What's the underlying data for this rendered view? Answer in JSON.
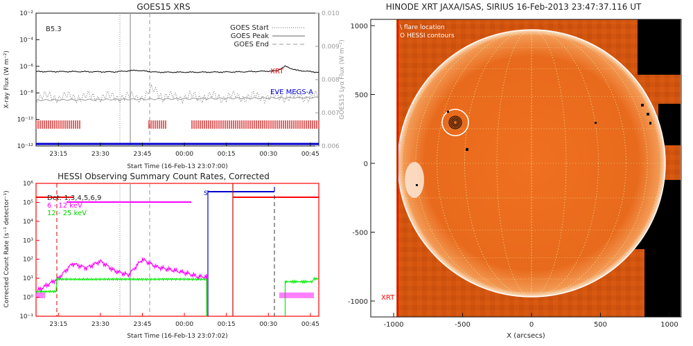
{
  "goes": {
    "title": "GOES15 XRS",
    "class_label": "B5.3",
    "ylabel_left": "X-ray Flux (W m⁻²)",
    "ylabel_right": "GOES15 Lyα Flux (W m⁻²)",
    "xlabel": "Start Time (16-Feb-13 23:07:00)",
    "time_ticks": [
      "23:15",
      "23:30",
      "23:45",
      "00:00",
      "00:15",
      "00:30",
      "00:45"
    ],
    "left_ticks": [
      "10⁻²",
      "10⁻⁴",
      "10⁻⁶",
      "10⁻⁸",
      "10⁻¹⁰",
      "10⁻¹²"
    ],
    "right_ticks": [
      "0.010",
      "0.009",
      "0.008",
      "0.007",
      "0.006"
    ],
    "legend": [
      "GOES Start",
      "GOES Peak",
      "GOES End"
    ],
    "xrt_label": "XRT",
    "eve_label": "EVE MEGS-A",
    "colors": {
      "xrt": "#cc0000",
      "eve": "#0000cc",
      "grey": "#999999"
    }
  },
  "hessi": {
    "title": "HESSI Observing Summary Count Rates, Corrected",
    "ylabel": "Corrected Count Rate (s⁻¹ detector⁻¹)",
    "xlabel": "Start Time (16-Feb-13 23:07:02)",
    "time_ticks": [
      "23:15",
      "23:30",
      "23:45",
      "00:00",
      "00:15",
      "00:30",
      "00:45"
    ],
    "y_ticks": [
      "10⁶",
      "10⁵",
      "10⁴",
      "10³",
      "10²",
      "10¹",
      "10⁰",
      "10⁻¹"
    ],
    "detectors_label": "Det: 1,3,4,5,6,9",
    "band1": "6 - 12 keV",
    "band2": "12 - 25 keV",
    "s_label": "S",
    "colors": {
      "band1": "#ff00ff",
      "band2": "#00ee00",
      "flag": "#ff0000",
      "saa": "#0000cc"
    }
  },
  "xrt": {
    "title": "HINODE XRT JAXA/ISAS, SIRIUS 16-Feb-2013 23:47:37.116 UT",
    "legend1": "\\ flare location",
    "legend2": "O  HESSI contours",
    "corner_label": "XRT",
    "xlabel": "X (arcsecs)",
    "x_ticks": [
      "-1000",
      "-500",
      "0",
      "500",
      "1000"
    ],
    "y_ticks": [
      "1000",
      "500",
      "0",
      "-500",
      "-1000"
    ]
  },
  "chart_data": [
    {
      "type": "line",
      "title": "GOES15 XRS",
      "xlabel": "Start Time (16-Feb-13 23:07:00)",
      "ylabel": "X-ray Flux (W m⁻²)",
      "y2label": "GOES15 Lyα Flux (W m⁻²)",
      "yscale": "log",
      "ylim": [
        1e-12,
        0.01
      ],
      "y2lim": [
        0.006,
        0.01
      ],
      "xlim": [
        "23:07",
        "00:48"
      ],
      "annotations": [
        "B5.3",
        "XRT",
        "EVE MEGS-A"
      ],
      "event_lines": {
        "GOES Start": "23:40",
        "GOES Peak": "23:43",
        "GOES End": "23:49"
      },
      "series": [
        {
          "name": "XRT",
          "x": [
            "23:07",
            "23:20",
            "23:35",
            "23:43",
            "23:50",
            "00:05",
            "00:20",
            "00:33",
            "00:36",
            "00:40",
            "00:48"
          ],
          "values": [
            4e-07,
            4e-07,
            3.8e-07,
            5e-07,
            3.6e-07,
            3.6e-07,
            3.8e-07,
            4.5e-07,
            1e-06,
            5e-07,
            3.5e-07
          ]
        },
        {
          "name": "EVE MEGS-A",
          "x": [
            "23:07",
            "23:20",
            "23:40",
            "23:55",
            "00:10",
            "00:30",
            "00:48"
          ],
          "values": [
            5e-09,
            6e-09,
            4e-09,
            7e-09,
            6e-09,
            5e-09,
            8e-09
          ]
        },
        {
          "x": [
            "23:07",
            "23:30",
            "23:45",
            "00:00",
            "00:20",
            "00:35",
            "00:48"
          ],
          "values": [
            6e-13,
            6e-13,
            6e-13,
            6e-13,
            6e-13,
            6e-13,
            6e-13
          ]
        }
      ]
    },
    {
      "type": "line",
      "title": "HESSI Observing Summary Count Rates, Corrected",
      "xlabel": "Start Time (16-Feb-13 23:07:02)",
      "ylabel": "Corrected Count Rate (s⁻¹ detector⁻¹)",
      "yscale": "log",
      "ylim": [
        0.1,
        1000000.0
      ],
      "xlim": [
        "23:07",
        "00:48"
      ],
      "annotations": [
        "Det: 1,3,4,5,6,9",
        "S"
      ],
      "series": [
        {
          "name": "6 - 12 keV",
          "x": [
            "23:07",
            "23:15",
            "23:20",
            "23:25",
            "23:30",
            "23:35",
            "23:40",
            "23:45",
            "23:50",
            "00:00",
            "00:05",
            "00:08"
          ],
          "values": [
            2,
            10,
            60,
            35,
            80,
            25,
            15,
            100,
            40,
            20,
            12,
            12
          ]
        },
        {
          "name": "12 - 25 keV",
          "x": [
            "23:07",
            "23:15",
            "23:30",
            "23:45",
            "00:00",
            "00:08",
            "00:35",
            "00:48"
          ],
          "values": [
            2,
            9,
            9,
            9,
            8,
            8,
            5,
            9
          ]
        }
      ]
    },
    {
      "type": "heatmap",
      "title": "HINODE XRT JAXA/ISAS, SIRIUS 16-Feb-2013 23:47:37.116 UT",
      "xlabel": "X (arcsecs)",
      "ylabel": "",
      "xlim": [
        -1100,
        1100
      ],
      "ylim": [
        -1100,
        1100
      ],
      "annotations": [
        "\\ flare location",
        "O  HESSI contours",
        "XRT"
      ]
    }
  ]
}
